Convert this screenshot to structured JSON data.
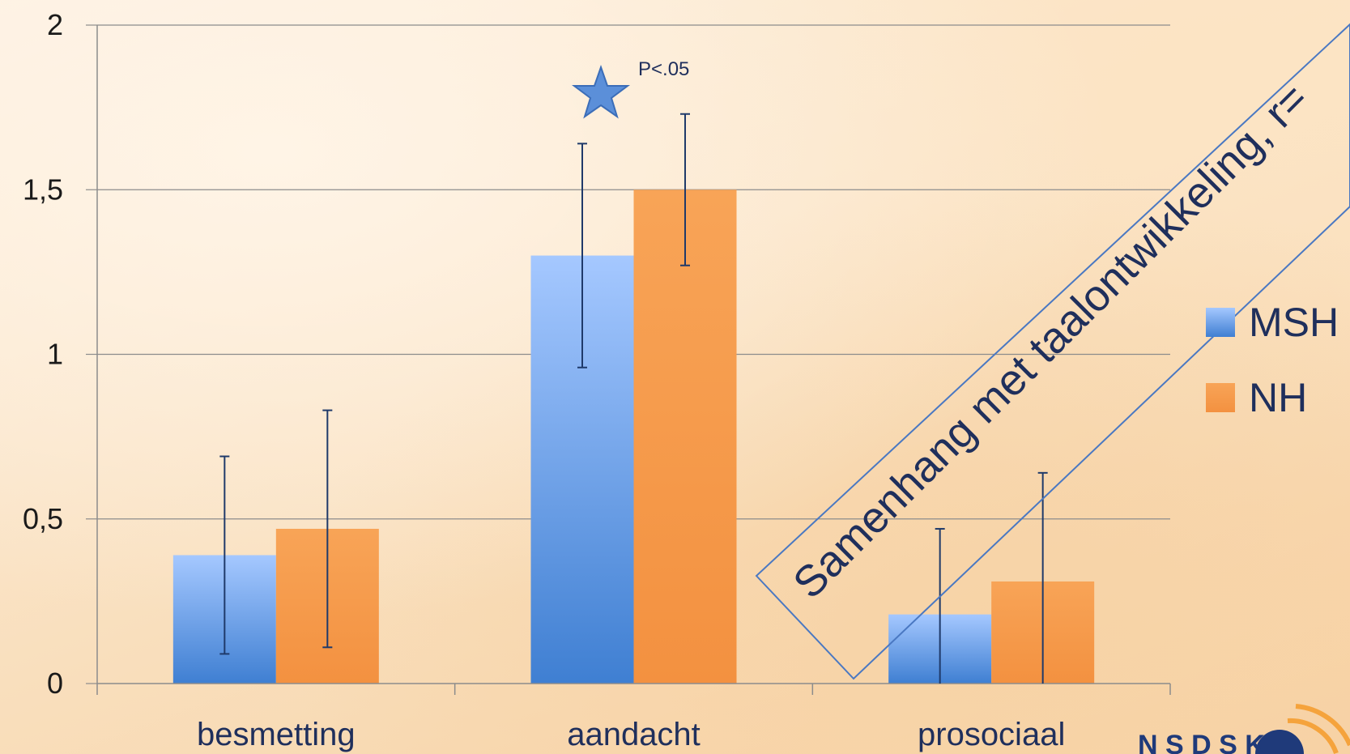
{
  "chart_data": {
    "type": "bar",
    "title": "",
    "xlabel": "",
    "ylabel": "",
    "categories": [
      "besmetting",
      "aandacht",
      "prosociaal"
    ],
    "ylim": [
      0,
      2
    ],
    "yticks": [
      0,
      0.5,
      1,
      1.5,
      2
    ],
    "ytick_labels": [
      "0",
      "0,5",
      "1",
      "1,5",
      "2"
    ],
    "grid": true,
    "legend_position": "right",
    "series": [
      {
        "name": "MSH",
        "color": "#4f86d6",
        "values": [
          0.39,
          1.3,
          0.21
        ],
        "error_low": [
          0.09,
          0.96,
          0.0
        ],
        "error_high": [
          0.69,
          1.64,
          0.47
        ]
      },
      {
        "name": "NH",
        "color": "#f59545",
        "values": [
          0.47,
          1.5,
          0.31
        ],
        "error_low": [
          0.11,
          1.27,
          0.0
        ],
        "error_high": [
          0.83,
          1.73,
          0.64
        ]
      }
    ],
    "annotations": {
      "significance_marker": "star-icon",
      "significance_text": "P<.05",
      "banner_text": "Samenhang met taalontwikkeling, r="
    }
  },
  "logo": {
    "text": "N S D S K",
    "icon": "logo-icon"
  }
}
